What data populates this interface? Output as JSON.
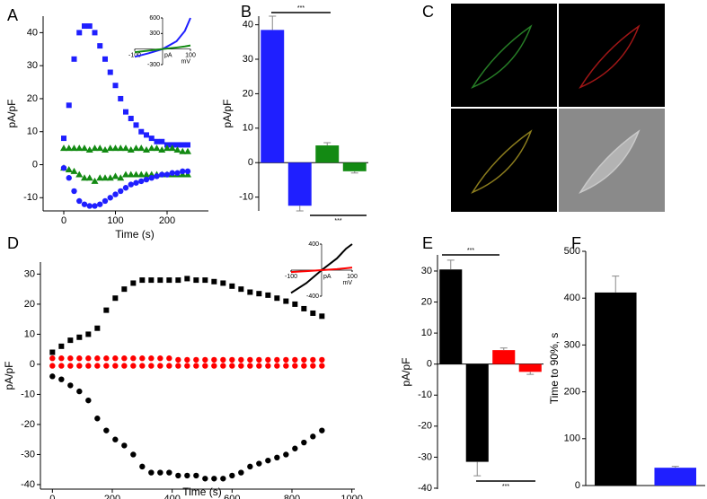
{
  "chart_data": [
    {
      "type": "scatter",
      "panel_label": "A",
      "xlabel": "Time (s)",
      "ylabel": "pA/pF",
      "x": [
        0,
        10,
        20,
        30,
        40,
        50,
        60,
        70,
        80,
        90,
        100,
        110,
        120,
        130,
        140,
        150,
        160,
        170,
        180,
        190,
        200,
        210,
        220,
        230,
        240
      ],
      "xlim": [
        -40,
        280
      ],
      "xticks": [
        0,
        100,
        200
      ],
      "ylim": [
        -14,
        45
      ],
      "yticks": [
        -10,
        0,
        10,
        20,
        30,
        40
      ],
      "series": [
        {
          "color": "#1f1fff",
          "marker": "square",
          "values": [
            8,
            18,
            32,
            40,
            42,
            42,
            40,
            36,
            32,
            28,
            24,
            20,
            16,
            14,
            12,
            10,
            9,
            8,
            7,
            7,
            6,
            6,
            6,
            6,
            6
          ]
        },
        {
          "color": "#138a13",
          "marker": "triangle",
          "values": [
            5,
            5,
            5,
            5,
            5,
            4.5,
            5,
            5,
            4.5,
            5,
            5,
            5,
            5,
            4.5,
            5,
            5,
            4.5,
            5,
            5,
            4.5,
            5,
            5,
            4.5,
            4,
            4
          ]
        },
        {
          "color": "#138a13",
          "marker": "triangle",
          "values": [
            -1,
            -1.5,
            -2,
            -3,
            -4,
            -4,
            -5,
            -4,
            -4,
            -4,
            -3.5,
            -4,
            -3,
            -3,
            -3,
            -3,
            -3,
            -3,
            -3,
            -3,
            -3,
            -3,
            -3,
            -3,
            -3
          ]
        },
        {
          "color": "#1f1fff",
          "marker": "circle",
          "values": [
            -1,
            -4,
            -8,
            -11,
            -12,
            -12.5,
            -12.5,
            -12,
            -11,
            -10,
            -9,
            -8,
            -7,
            -6,
            -5.5,
            -5,
            -4.5,
            -4,
            -3.5,
            -3,
            -3,
            -2.5,
            -2.5,
            -2,
            -2
          ]
        }
      ]
    },
    {
      "type": "line",
      "xlabel": "mV",
      "ylabel": "pA",
      "x": [
        -100,
        -50,
        0,
        50,
        80,
        100
      ],
      "xlim": [
        -100,
        100
      ],
      "xticks": [
        -100,
        100
      ],
      "ylim": [
        -300,
        600
      ],
      "yticks": [
        -300,
        300,
        600
      ],
      "series": [
        {
          "color": "#1f1fff",
          "values": [
            -150,
            -80,
            0,
            150,
            350,
            600
          ]
        },
        {
          "color": "#138a13",
          "values": [
            -60,
            -30,
            0,
            30,
            50,
            70
          ]
        }
      ]
    },
    {
      "type": "bar",
      "panel_label": "B",
      "ylabel": "pA/pF",
      "ylim": [
        -14,
        42.5
      ],
      "yticks": [
        -10,
        0,
        10,
        20,
        30,
        40
      ],
      "values": [
        38.5,
        -12.5,
        5,
        -2.5
      ],
      "errors": [
        4,
        1.5,
        0.8,
        0.5
      ],
      "colors": [
        "#1f1fff",
        "#1f1fff",
        "#138a13",
        "#138a13"
      ],
      "bar_width": 0.85,
      "annotations": [
        "***",
        "***"
      ]
    },
    {
      "type": "image",
      "panel_label": "C"
    },
    {
      "type": "scatter",
      "panel_label": "D",
      "xlabel": "Time (s)",
      "ylabel": "pA/pF",
      "x": [
        0,
        30,
        60,
        90,
        120,
        150,
        180,
        210,
        240,
        270,
        300,
        330,
        360,
        390,
        420,
        450,
        480,
        510,
        540,
        570,
        600,
        630,
        660,
        690,
        720,
        750,
        780,
        810,
        840,
        870,
        900
      ],
      "xlim": [
        -40,
        1010
      ],
      "xticks": [
        0,
        200,
        400,
        600,
        800,
        1000
      ],
      "ylim": [
        -41.5,
        34
      ],
      "yticks": [
        -40,
        -30,
        -20,
        -10,
        0,
        10,
        20,
        30
      ],
      "series": [
        {
          "color": "#000000",
          "marker": "square",
          "values": [
            4,
            6,
            8,
            9,
            10,
            12,
            18,
            22,
            25,
            27,
            28,
            28,
            28,
            28,
            28,
            28.5,
            28,
            28,
            27.5,
            27,
            26,
            25,
            24,
            23.5,
            23,
            22,
            21,
            20,
            18.5,
            17,
            16
          ]
        },
        {
          "color": "#ff0000",
          "marker": "circle",
          "values": [
            2,
            2,
            2,
            2,
            2,
            2,
            2,
            2,
            2,
            2,
            2,
            2,
            2,
            2,
            1.5,
            1.5,
            1.5,
            1.5,
            1.5,
            1.5,
            1.5,
            1.5,
            1.5,
            1.5,
            1.5,
            1.5,
            1.5,
            1.5,
            1.5,
            1.5,
            1.5
          ]
        },
        {
          "color": "#ff0000",
          "marker": "circle",
          "values": [
            -0.5,
            -0.5,
            -0.5,
            -0.5,
            -0.5,
            -0.5,
            -0.5,
            -0.5,
            -0.5,
            -0.5,
            -0.5,
            -0.5,
            -0.5,
            -0.5,
            -0.5,
            -0.5,
            -0.5,
            -0.5,
            -0.5,
            -0.5,
            -0.5,
            -0.5,
            -0.5,
            -0.5,
            -0.5,
            -0.5,
            -0.5,
            -0.5,
            -0.5,
            -0.5,
            -0.5
          ]
        },
        {
          "color": "#000000",
          "marker": "circle",
          "values": [
            -4,
            -5,
            -7,
            -9,
            -12,
            -18,
            -22,
            -25,
            -27,
            -30,
            -34,
            -36,
            -36,
            -36,
            -37,
            -37,
            -37,
            -38,
            -38,
            -38,
            -37,
            -36,
            -34,
            -33,
            -32,
            -31,
            -30,
            -28,
            -26,
            -24,
            -22
          ]
        }
      ]
    },
    {
      "type": "line",
      "xlabel": "mV",
      "ylabel": "pA",
      "x": [
        -100,
        -50,
        0,
        50,
        80,
        100
      ],
      "xlim": [
        -100,
        100
      ],
      "xticks": [
        -100,
        100
      ],
      "ylim": [
        -400,
        400
      ],
      "yticks": [
        -400,
        400
      ],
      "series": [
        {
          "color": "#000000",
          "values": [
            -350,
            -200,
            0,
            180,
            330,
            400
          ]
        },
        {
          "color": "#ff0000",
          "values": [
            -30,
            -15,
            0,
            15,
            30,
            40
          ]
        }
      ]
    },
    {
      "type": "bar",
      "panel_label": "E",
      "ylabel": "pA/pF",
      "ylim": [
        -40.3,
        35.2
      ],
      "yticks": [
        -40,
        -30,
        -20,
        -10,
        0,
        10,
        20,
        30
      ],
      "values": [
        30.5,
        -31.5,
        4.5,
        -2.5
      ],
      "errors": [
        3,
        4.5,
        0.7,
        0.8
      ],
      "colors": [
        "#000000",
        "#000000",
        "#ff0000",
        "#ff0000"
      ],
      "bar_width": 0.85,
      "annotations": [
        "***",
        "***"
      ]
    },
    {
      "type": "bar",
      "panel_label": "F",
      "ylabel": "Time to 90%, s",
      "ylim": [
        0,
        500
      ],
      "yticks": [
        0,
        100,
        200,
        300,
        400,
        500
      ],
      "values": [
        412,
        38
      ],
      "errors": [
        35,
        3
      ],
      "colors": [
        "#000000",
        "#1f1fff"
      ],
      "bar_width": 0.7
    }
  ]
}
